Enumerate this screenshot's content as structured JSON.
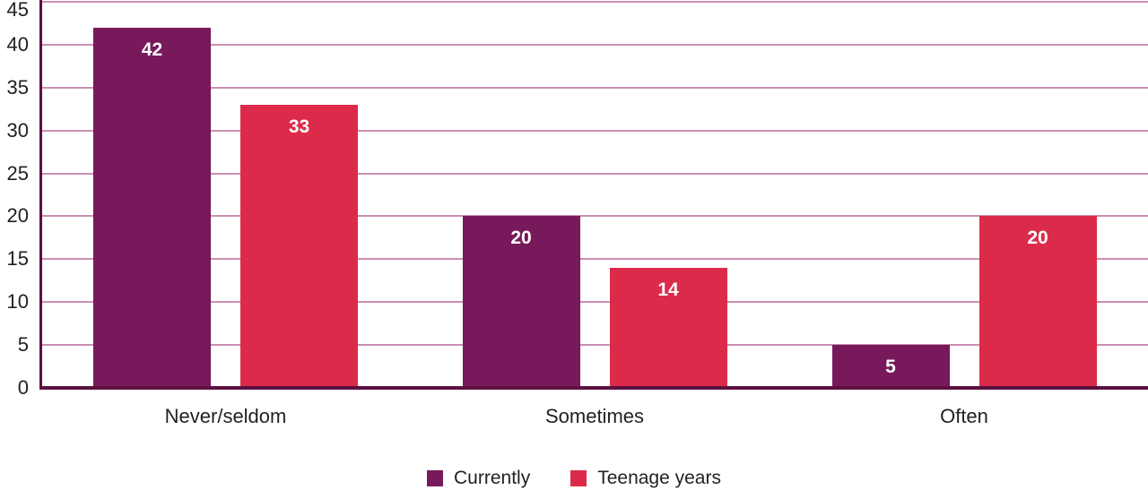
{
  "chart_data": {
    "type": "bar",
    "categories": [
      "Never/seldom",
      "Sometimes",
      "Often"
    ],
    "series": [
      {
        "name": "Currently",
        "color": "#77195a",
        "values": [
          42,
          20,
          5
        ]
      },
      {
        "name": "Teenage years",
        "color": "#dc2b4a",
        "values": [
          33,
          14,
          20
        ]
      }
    ],
    "yticks": [
      0,
      5,
      10,
      15,
      20,
      25,
      30,
      35,
      40,
      45
    ],
    "ylim": [
      0,
      45
    ],
    "grid": true,
    "legend_position": "bottom",
    "value_labels_shown": true,
    "title": "",
    "xlabel": "",
    "ylabel": "",
    "colors": {
      "value_label": "#ffffff",
      "tick_label": "#231f20",
      "gridline": "#cc8fb4",
      "axis_line": "#5c1140",
      "background": "#ffffff"
    }
  }
}
